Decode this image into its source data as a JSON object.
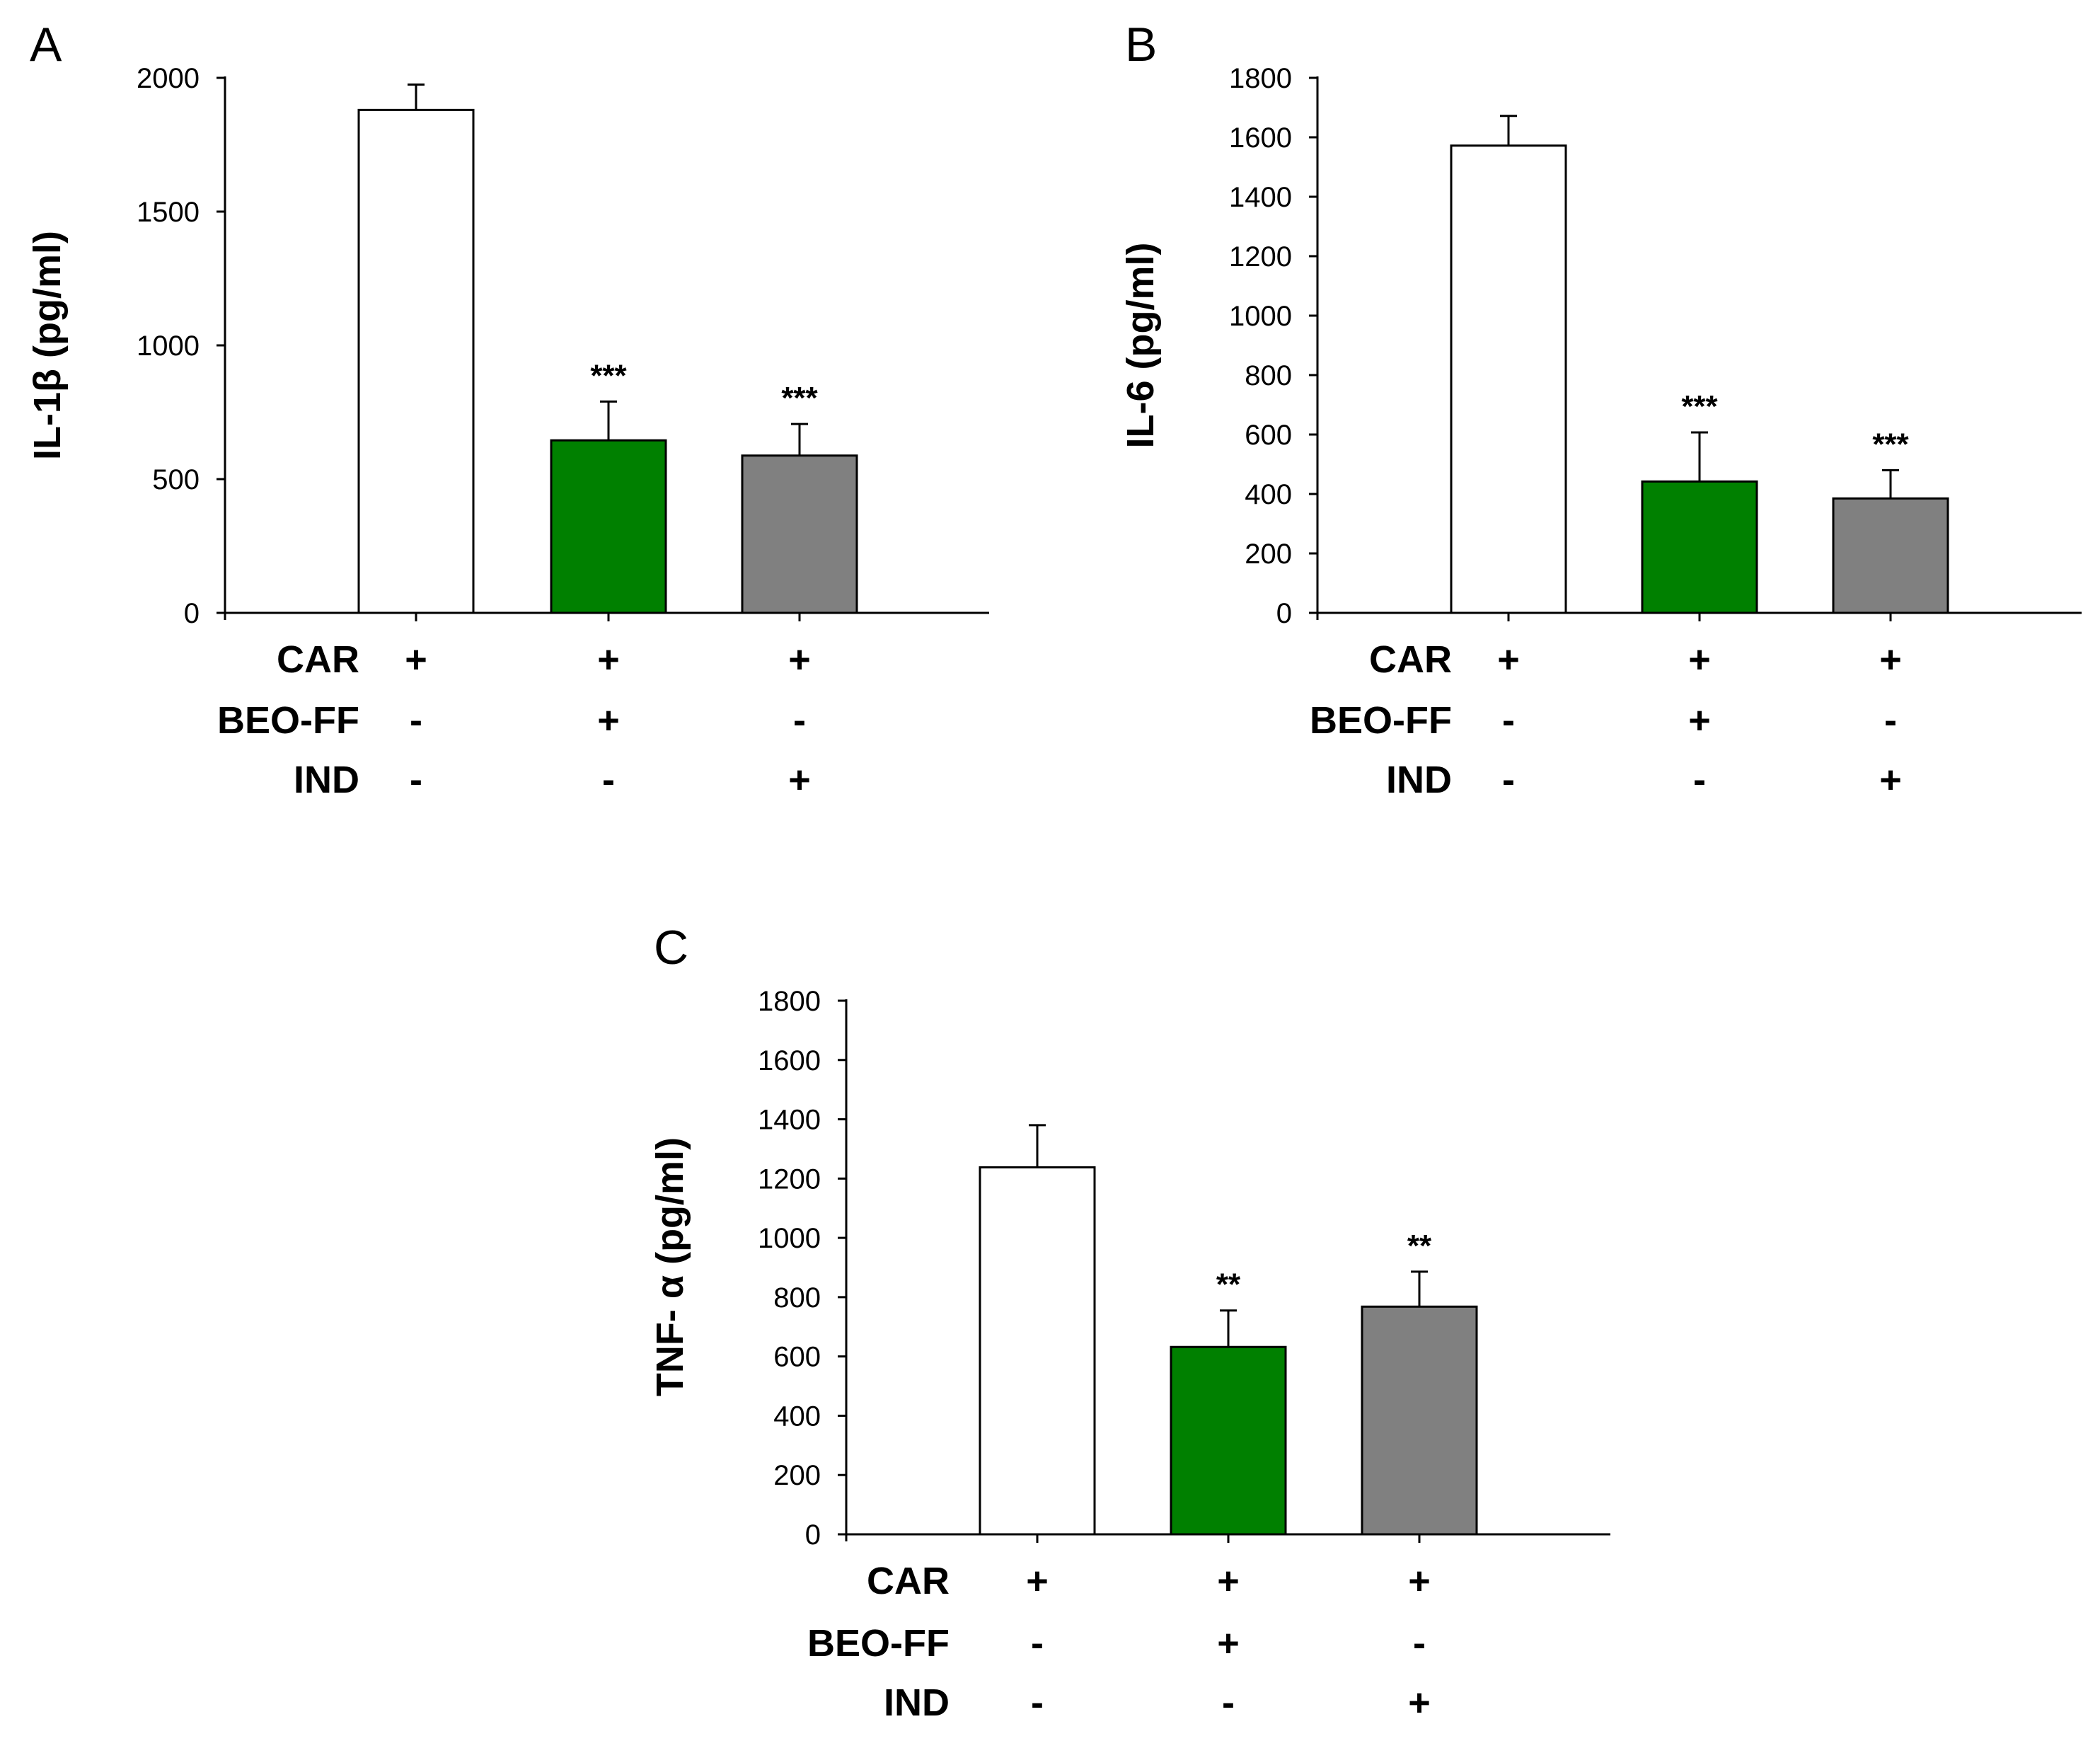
{
  "chart_data": [
    {
      "type": "bar",
      "panel_label": "A",
      "ylabel": "IL-1β (pg/ml)",
      "ylim": [
        0,
        2000
      ],
      "yticks": [
        0,
        500,
        1000,
        1500,
        2000
      ],
      "categories": [
        "CAR",
        "CAR + BEO-FF",
        "CAR + IND"
      ],
      "values": [
        1880,
        645,
        588
      ],
      "errors": [
        95,
        145,
        118
      ],
      "bar_colors": [
        "#ffffff",
        "#008000",
        "#808080"
      ],
      "significance": [
        "",
        "***",
        "***"
      ],
      "treatment_rows": [
        {
          "name": "CAR",
          "signs": [
            "+",
            "+",
            "+"
          ]
        },
        {
          "name": "BEO-FF",
          "signs": [
            "-",
            "+",
            "-"
          ]
        },
        {
          "name": "IND",
          "signs": [
            "-",
            "-",
            "+"
          ]
        }
      ],
      "grid": false
    },
    {
      "type": "bar",
      "panel_label": "B",
      "ylabel": "IL-6 (pg/ml)",
      "ylim": [
        0,
        1800
      ],
      "yticks": [
        0,
        200,
        400,
        600,
        800,
        1000,
        1200,
        1400,
        1600,
        1800
      ],
      "categories": [
        "CAR",
        "CAR + BEO-FF",
        "CAR + IND"
      ],
      "values": [
        1572,
        442,
        385
      ],
      "errors": [
        100,
        165,
        95
      ],
      "bar_colors": [
        "#ffffff",
        "#008000",
        "#808080"
      ],
      "significance": [
        "",
        "***",
        "***"
      ],
      "treatment_rows": [
        {
          "name": "CAR",
          "signs": [
            "+",
            "+",
            "+"
          ]
        },
        {
          "name": "BEO-FF",
          "signs": [
            "-",
            "+",
            "-"
          ]
        },
        {
          "name": "IND",
          "signs": [
            "-",
            "-",
            "+"
          ]
        }
      ],
      "grid": false
    },
    {
      "type": "bar",
      "panel_label": "C",
      "ylabel": "TNF- α (pg/ml)",
      "ylim": [
        0,
        1800
      ],
      "yticks": [
        0,
        200,
        400,
        600,
        800,
        1000,
        1200,
        1400,
        1600,
        1800
      ],
      "categories": [
        "CAR",
        "CAR + BEO-FF",
        "CAR + IND"
      ],
      "values": [
        1238,
        632,
        768
      ],
      "errors": [
        142,
        123,
        118
      ],
      "bar_colors": [
        "#ffffff",
        "#008000",
        "#808080"
      ],
      "significance": [
        "",
        "**",
        "**"
      ],
      "treatment_rows": [
        {
          "name": "CAR",
          "signs": [
            "+",
            "+",
            "+"
          ]
        },
        {
          "name": "BEO-FF",
          "signs": [
            "-",
            "+",
            "-"
          ]
        },
        {
          "name": "IND",
          "signs": [
            "-",
            "-",
            "+"
          ]
        }
      ],
      "grid": false
    }
  ]
}
